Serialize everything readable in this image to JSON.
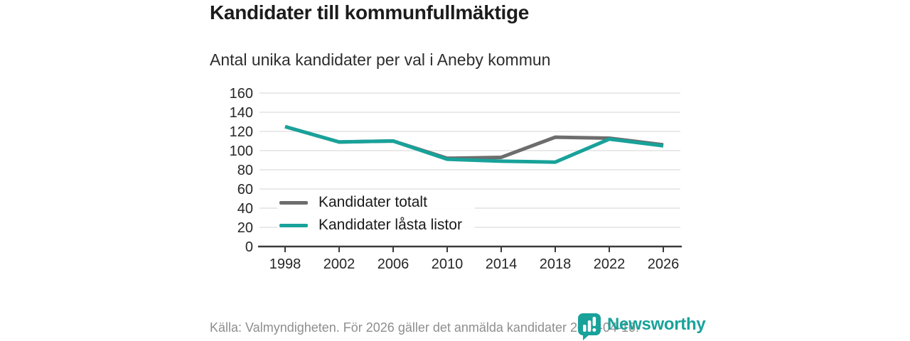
{
  "page": {
    "title": "Kandidater till kommunfullmäktige",
    "subtitle": "Antal unika kandidater per val i Aneby kommun",
    "source_note": "Källa: Valmyndigheten. För 2026 gäller det anmälda kandidater 2026-04-10.",
    "brand_name": "Newsworthy"
  },
  "colors": {
    "accent_teal": "#18a29a",
    "series_total_gray": "#6d6d6d",
    "grid": "#e2e2e2",
    "axis": "#3a3a3a",
    "tick_text": "#262626",
    "muted_text": "#8e8e8e"
  },
  "chart_data": {
    "type": "line",
    "title": "Kandidater till kommunfullmäktige",
    "subtitle": "Antal unika kandidater per val i Aneby kommun",
    "categories": [
      "1998",
      "2002",
      "2006",
      "2010",
      "2014",
      "2018",
      "2022",
      "2026"
    ],
    "series": [
      {
        "name": "Kandidater totalt",
        "color": "#6d6d6d",
        "values": [
          125,
          109,
          110,
          92,
          93,
          114,
          113,
          106
        ]
      },
      {
        "name": "Kandidater låsta listor",
        "color": "#18a29a",
        "values": [
          125,
          109,
          110,
          91,
          89,
          88,
          112,
          105
        ]
      }
    ],
    "xlabel": "",
    "ylabel": "",
    "ylim": [
      0,
      160
    ],
    "y_ticks": [
      0,
      20,
      40,
      60,
      80,
      100,
      120,
      140,
      160
    ],
    "grid": "horizontal",
    "legend_position": "inside-bottom-left"
  }
}
